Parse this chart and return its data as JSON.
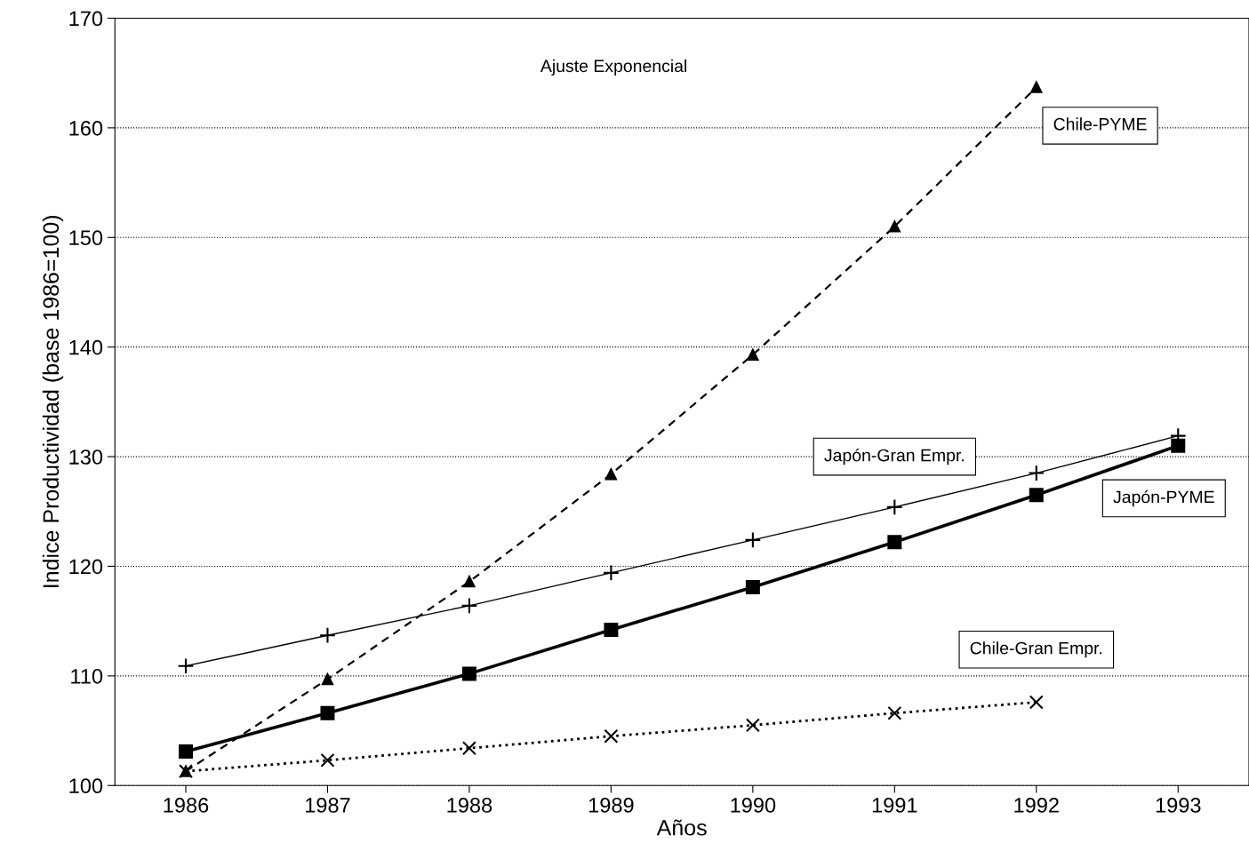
{
  "chart_data": {
    "type": "line",
    "xlabel": "Años",
    "ylabel": "Indice Productividad (base 1986=100)",
    "annotations": [
      "Ajuste Exponencial"
    ],
    "x": [
      1986,
      1987,
      1988,
      1989,
      1990,
      1991,
      1992,
      1993
    ],
    "xlim": [
      1985.5,
      1993.5
    ],
    "xticks": [
      1986,
      1987,
      1988,
      1989,
      1990,
      1991,
      1992,
      1993
    ],
    "ylim": [
      100,
      170
    ],
    "yticks": [
      100,
      110,
      120,
      130,
      140,
      150,
      160,
      170
    ],
    "grid": "y",
    "legend": false,
    "series": [
      {
        "name": "Chile-PYME",
        "color": "#000000",
        "marker": "triangle",
        "line_style": "dashed",
        "values": [
          101.3,
          109.7,
          118.6,
          128.4,
          139.3,
          151.0,
          163.7,
          null
        ]
      },
      {
        "name": "Japón-Gran Empr.",
        "color": "#000000",
        "marker": "cross",
        "line_style": "solid",
        "values": [
          110.9,
          113.7,
          116.4,
          119.4,
          122.4,
          125.4,
          128.5,
          131.9
        ]
      },
      {
        "name": "Japón-PYME",
        "color": "#000000",
        "marker": "square",
        "line_style": "solid",
        "values": [
          103.1,
          106.6,
          110.2,
          114.2,
          118.1,
          122.2,
          126.5,
          131.0
        ]
      },
      {
        "name": "Chile-Gran Empr.",
        "color": "#000000",
        "marker": "x",
        "line_style": "dotted",
        "values": [
          101.3,
          102.3,
          103.4,
          104.5,
          105.5,
          106.6,
          107.6,
          null
        ]
      }
    ]
  }
}
